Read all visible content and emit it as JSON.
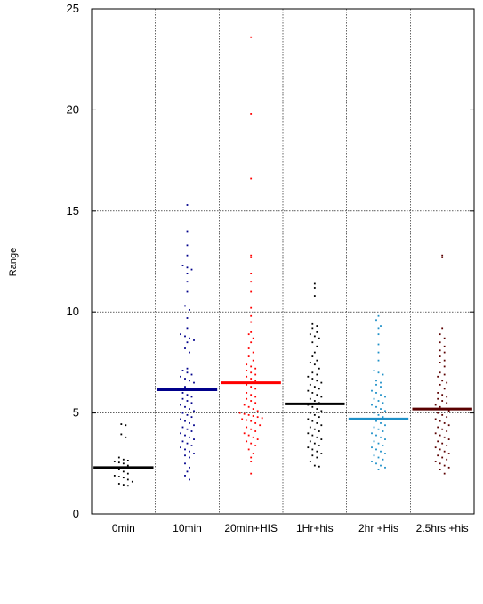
{
  "chart_data": {
    "type": "scatter",
    "title": "",
    "xlabel": "",
    "ylabel": "Range",
    "ylim": [
      0,
      25
    ],
    "yticks": [
      0,
      5,
      10,
      15,
      20,
      25
    ],
    "grid": true,
    "categories": [
      "0min",
      "10min",
      "20min+HIS",
      "1Hr+his",
      "2hr +His",
      "2.5hrs +his"
    ],
    "series": [
      {
        "color": "#000000",
        "mean": 2.3,
        "values": [
          4.45,
          4.4,
          3.95,
          3.8,
          2.8,
          2.7,
          2.65,
          2.6,
          2.55,
          2.5,
          2.4,
          2.3,
          2.2,
          2.1,
          2.0,
          1.9,
          1.85,
          1.8,
          1.7,
          1.6,
          1.5,
          1.45,
          1.4
        ]
      },
      {
        "color": "#00008b",
        "mean": 6.15,
        "values": [
          15.3,
          14.0,
          13.3,
          12.8,
          12.3,
          12.2,
          12.1,
          11.9,
          11.5,
          11.0,
          10.3,
          10.1,
          9.7,
          9.2,
          8.9,
          8.8,
          8.7,
          8.6,
          8.5,
          8.2,
          8.0,
          7.2,
          7.1,
          7.0,
          6.9,
          6.8,
          6.7,
          6.6,
          6.5,
          6.3,
          6.2,
          6.0,
          5.9,
          5.8,
          5.7,
          5.6,
          5.5,
          5.4,
          5.3,
          5.2,
          5.1,
          5.0,
          4.9,
          4.8,
          4.7,
          4.6,
          4.5,
          4.4,
          4.3,
          4.2,
          4.1,
          4.0,
          3.9,
          3.8,
          3.7,
          3.6,
          3.5,
          3.4,
          3.3,
          3.2,
          3.1,
          3.0,
          2.9,
          2.8,
          2.5,
          2.3,
          2.1,
          1.9,
          1.7
        ]
      },
      {
        "color": "#ff0000",
        "mean": 6.5,
        "values": [
          23.6,
          19.8,
          16.6,
          12.8,
          12.7,
          11.9,
          11.5,
          11.0,
          10.2,
          9.8,
          9.5,
          9.0,
          8.9,
          8.7,
          8.5,
          8.2,
          8.0,
          7.8,
          7.6,
          7.4,
          7.3,
          7.2,
          7.1,
          7.0,
          6.9,
          6.8,
          6.7,
          6.6,
          6.4,
          6.3,
          6.2,
          6.0,
          5.9,
          5.8,
          5.7,
          5.6,
          5.5,
          5.4,
          5.3,
          5.2,
          5.1,
          5.0,
          4.95,
          4.9,
          4.85,
          4.8,
          4.75,
          4.7,
          4.65,
          4.6,
          4.5,
          4.4,
          4.3,
          4.2,
          4.1,
          4.0,
          3.9,
          3.8,
          3.7,
          3.6,
          3.5,
          3.4,
          3.2,
          3.0,
          2.8,
          2.6,
          2.0
        ]
      },
      {
        "color": "#000000",
        "mean": 5.45,
        "values": [
          11.4,
          11.2,
          10.8,
          9.4,
          9.3,
          9.2,
          9.0,
          8.9,
          8.8,
          8.7,
          8.5,
          8.3,
          8.0,
          7.8,
          7.6,
          7.5,
          7.4,
          7.2,
          7.0,
          6.9,
          6.8,
          6.7,
          6.6,
          6.5,
          6.4,
          6.3,
          6.2,
          6.1,
          6.0,
          5.9,
          5.8,
          5.7,
          5.6,
          5.5,
          5.4,
          5.3,
          5.2,
          5.1,
          5.0,
          4.9,
          4.8,
          4.7,
          4.6,
          4.5,
          4.4,
          4.3,
          4.2,
          4.1,
          4.0,
          3.9,
          3.8,
          3.7,
          3.6,
          3.5,
          3.4,
          3.3,
          3.2,
          3.1,
          3.0,
          2.9,
          2.8,
          2.6,
          2.4,
          2.35
        ]
      },
      {
        "color": "#1e90c8",
        "mean": 4.7,
        "values": [
          9.8,
          9.6,
          9.3,
          9.2,
          8.9,
          8.4,
          8.0,
          7.6,
          7.1,
          7.0,
          6.9,
          6.6,
          6.5,
          6.4,
          6.3,
          6.1,
          6.0,
          5.9,
          5.8,
          5.7,
          5.6,
          5.5,
          5.4,
          5.3,
          5.2,
          5.1,
          5.0,
          4.9,
          4.8,
          4.7,
          4.6,
          4.5,
          4.4,
          4.3,
          4.2,
          4.1,
          4.0,
          3.9,
          3.8,
          3.7,
          3.6,
          3.5,
          3.4,
          3.3,
          3.2,
          3.1,
          3.0,
          2.9,
          2.8,
          2.7,
          2.6,
          2.5,
          2.4,
          2.3,
          2.2
        ]
      },
      {
        "color": "#5a0000",
        "mean": 5.2,
        "values": [
          12.8,
          12.7,
          9.2,
          8.9,
          8.7,
          8.5,
          8.3,
          8.1,
          8.0,
          7.8,
          7.6,
          7.5,
          7.3,
          7.0,
          6.9,
          6.8,
          6.6,
          6.5,
          6.4,
          6.2,
          6.0,
          5.9,
          5.8,
          5.7,
          5.6,
          5.5,
          5.4,
          5.3,
          5.2,
          5.1,
          5.0,
          4.9,
          4.8,
          4.7,
          4.6,
          4.5,
          4.4,
          4.3,
          4.2,
          4.1,
          4.0,
          3.9,
          3.8,
          3.7,
          3.6,
          3.5,
          3.4,
          3.3,
          3.2,
          3.1,
          3.0,
          2.9,
          2.8,
          2.7,
          2.6,
          2.5,
          2.4,
          2.3,
          2.2,
          2.0
        ]
      }
    ]
  }
}
